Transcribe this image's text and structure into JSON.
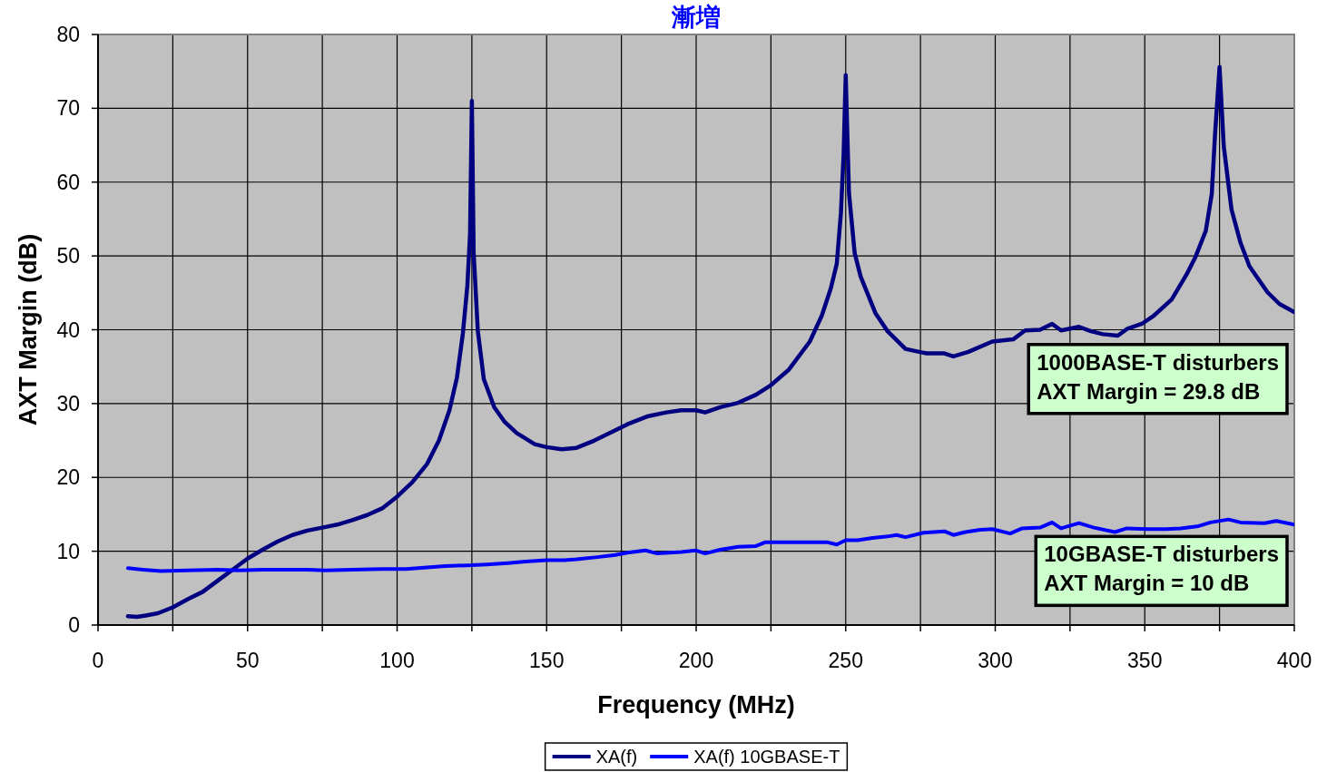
{
  "chart_data": {
    "type": "line",
    "title": "漸増",
    "xlabel": "Frequency (MHz)",
    "ylabel": "AXT Margin (dB)",
    "xlim": [
      0,
      400
    ],
    "ylim": [
      0,
      80
    ],
    "xticks": [
      0,
      {
        "value": 25,
        "label": null
      },
      50,
      {
        "value": 75,
        "label": null
      },
      100,
      {
        "value": 125,
        "label": null
      },
      150,
      {
        "value": 175,
        "label": null
      },
      200,
      {
        "value": 225,
        "label": null
      },
      250,
      {
        "value": 275,
        "label": null
      },
      300,
      {
        "value": 325,
        "label": null
      },
      350,
      {
        "value": 375,
        "label": null
      },
      400
    ],
    "yticks": [
      0,
      10,
      20,
      30,
      40,
      50,
      60,
      70,
      80
    ],
    "grid": true,
    "legend": "bottom",
    "line_style": "solid",
    "series": [
      {
        "name": "XA(f)",
        "color": "#000080",
        "x": [
          10,
          13,
          16,
          20,
          25,
          30,
          35,
          40,
          45,
          50,
          55,
          60,
          65,
          70,
          75,
          80,
          85,
          90,
          95,
          100,
          105,
          110,
          114,
          117.5,
          120,
          122,
          123.5,
          124.4,
          125,
          125.6,
          127,
          129,
          132.5,
          136,
          140,
          146,
          150,
          155,
          160,
          166,
          173,
          177,
          184,
          190,
          195,
          200,
          203,
          208,
          214,
          220,
          225,
          231,
          238,
          242,
          245,
          247,
          248.4,
          249.3,
          250,
          251.1,
          253,
          255,
          260,
          264,
          270,
          277,
          283,
          286,
          291,
          299,
          306,
          310,
          315,
          319,
          322,
          328,
          332,
          336,
          341,
          344,
          349,
          353,
          359,
          364,
          367,
          370.4,
          372.4,
          373.5,
          375,
          376.4,
          379,
          382,
          385,
          391,
          395,
          400
        ],
        "values": [
          1.2,
          1.1,
          1.3,
          1.6,
          2.4,
          3.5,
          4.5,
          6.0,
          7.5,
          9.0,
          10.2,
          11.3,
          12.2,
          12.8,
          13.2,
          13.6,
          14.2,
          14.9,
          15.8,
          17.4,
          19.3,
          21.8,
          25.0,
          29.1,
          33.5,
          39.5,
          46.0,
          53.0,
          71.0,
          50.4,
          39.8,
          33.3,
          29.5,
          27.5,
          26.0,
          24.5,
          24.1,
          23.8,
          24.0,
          25.0,
          26.4,
          27.2,
          28.3,
          28.8,
          29.1,
          29.1,
          28.8,
          29.5,
          30.1,
          31.2,
          32.5,
          34.6,
          38.4,
          41.9,
          45.6,
          48.9,
          55.8,
          63.8,
          74.5,
          58.5,
          50.4,
          47.2,
          42.2,
          39.8,
          37.4,
          36.8,
          36.8,
          36.4,
          37.0,
          38.4,
          38.7,
          39.9,
          40.0,
          40.8,
          39.9,
          40.4,
          39.8,
          39.4,
          39.2,
          40.1,
          40.8,
          41.9,
          44.1,
          47.5,
          49.9,
          53.4,
          58.4,
          66.5,
          75.6,
          64.9,
          56.3,
          51.8,
          48.6,
          45.1,
          43.5,
          42.4
        ]
      },
      {
        "name": "XA(f) 10GBASE-T",
        "color": "#0000ff",
        "x": [
          10,
          15,
          21,
          30,
          40,
          47,
          55,
          62,
          70,
          76,
          85,
          95,
          103,
          110,
          116,
          125,
          130,
          137,
          143,
          150,
          156,
          160,
          167,
          173,
          177,
          183,
          187,
          195,
          200,
          203,
          208,
          214,
          220,
          223,
          230,
          237,
          244,
          247,
          250,
          254,
          259,
          264,
          267,
          270,
          276,
          283,
          286,
          290,
          295,
          299,
          305,
          309,
          315,
          319,
          322,
          328,
          333,
          340,
          344,
          351,
          357,
          362,
          368,
          372,
          378,
          382,
          390,
          394,
          400
        ],
        "values": [
          7.7,
          7.5,
          7.3,
          7.4,
          7.5,
          7.4,
          7.5,
          7.5,
          7.5,
          7.4,
          7.5,
          7.6,
          7.6,
          7.8,
          8.0,
          8.1,
          8.2,
          8.4,
          8.6,
          8.8,
          8.8,
          8.9,
          9.2,
          9.5,
          9.8,
          10.1,
          9.7,
          9.9,
          10.1,
          9.7,
          10.2,
          10.6,
          10.7,
          11.2,
          11.2,
          11.2,
          11.2,
          10.9,
          11.5,
          11.5,
          11.8,
          12.0,
          12.2,
          11.9,
          12.5,
          12.7,
          12.2,
          12.6,
          12.9,
          13.0,
          12.4,
          13.1,
          13.2,
          13.9,
          13.1,
          13.8,
          13.2,
          12.6,
          13.1,
          13.0,
          13.0,
          13.1,
          13.4,
          13.9,
          14.3,
          13.9,
          13.8,
          14.1,
          13.6
        ]
      }
    ],
    "annotations": [
      "1000BASE-T disturbers\nAXT Margin = 29.8 dB",
      "10GBASE-T disturbers\nAXT Margin = 10 dB"
    ]
  }
}
